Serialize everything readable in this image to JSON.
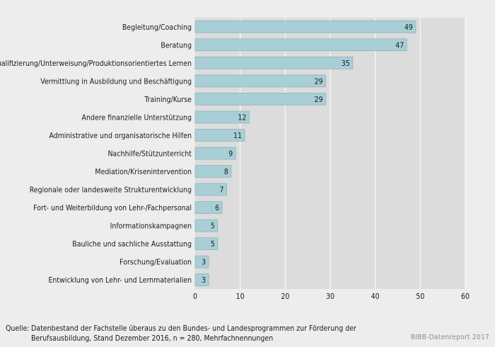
{
  "chart_data": {
    "type": "bar",
    "orientation": "horizontal",
    "categories": [
      "Begleitung/Coaching",
      "Beratung",
      "Qualifizierung/Unterweisung/Produktionsorientiertes Lernen",
      "Vermittlung in Ausbildung und Beschäftigung",
      "Training/Kurse",
      "Andere finanzielle Unterstützung",
      "Administrative und organisatorische Hilfen",
      "Nachhilfe/Stützunterricht",
      "Mediation/Krisenintervention",
      "Regionale oder landesweite Strukturentwicklung",
      "Fort- und Weiterbildung von Lehr-/Fachpersonal",
      "Informationskampagnen",
      "Bauliche und sachliche Ausstattung",
      "Forschung/Evaluation",
      "Entwicklung von Lehr- und Lernmaterialien"
    ],
    "values": [
      49,
      47,
      35,
      29,
      29,
      12,
      11,
      9,
      8,
      7,
      6,
      5,
      5,
      3,
      3
    ],
    "xlim": [
      0,
      60
    ],
    "xticks": [
      0,
      10,
      20,
      30,
      40,
      50,
      60
    ],
    "grid": true,
    "colors": {
      "bar": "#a9cfd6",
      "bar_border": "#7eaab4",
      "plot_bg": "#dcdcdc",
      "page_bg": "#ededed",
      "grid": "#ffffff"
    }
  },
  "footer": {
    "source_label": "Quelle:",
    "source_text": "Datenbestand der Fachstelle überaus zu den Bundes- und Landesprogrammen zur Förderung der Berufsausbildung, Stand Dezember 2016, n = 280, Mehrfachnennungen",
    "credit": "BIBB-Datenreport 2017"
  }
}
